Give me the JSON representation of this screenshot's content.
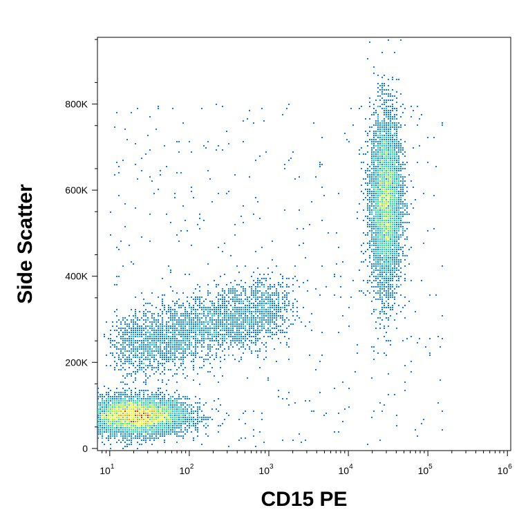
{
  "chart_data": {
    "type": "scatter",
    "style": "density-dot-plot",
    "xlabel": "CD15 PE",
    "ylabel": "Side Scatter",
    "x_scale": "log",
    "xlim": [
      7,
      1100000
    ],
    "ylim": [
      -5000,
      955000
    ],
    "x_ticks": [
      {
        "value": 10,
        "base": "10",
        "exp": "1"
      },
      {
        "value": 100,
        "base": "10",
        "exp": "2"
      },
      {
        "value": 1000,
        "base": "10",
        "exp": "3"
      },
      {
        "value": 10000,
        "base": "10",
        "exp": "4"
      },
      {
        "value": 100000,
        "base": "10",
        "exp": "5"
      },
      {
        "value": 1000000,
        "base": "10",
        "exp": "6"
      }
    ],
    "y_ticks": [
      {
        "value": 0,
        "label": "0"
      },
      {
        "value": 200000,
        "label": "200K"
      },
      {
        "value": 400000,
        "label": "400K"
      },
      {
        "value": 600000,
        "label": "600K"
      },
      {
        "value": 800000,
        "label": "800K"
      }
    ],
    "populations": [
      {
        "id": "cd15-negative",
        "x_center": 22,
        "y_center": 75000,
        "x_spread_log": 0.32,
        "y_spread": 22000,
        "events": 5500
      },
      {
        "id": "cd15-low-trail",
        "x_start": 15,
        "x_end": 1500,
        "y_start": 230000,
        "y_end": 330000,
        "y_spread": 38000,
        "events": 3000
      },
      {
        "id": "cd15-positive",
        "x_center": 30000,
        "y_center": 570000,
        "x_spread_log": 0.1,
        "y_spread": 105000,
        "events": 4500
      }
    ],
    "density_colors": [
      "#0000ff",
      "#0077ff",
      "#00c8ff",
      "#00ff88",
      "#9bff00",
      "#ffff00",
      "#ff9900",
      "#ff2200"
    ]
  }
}
